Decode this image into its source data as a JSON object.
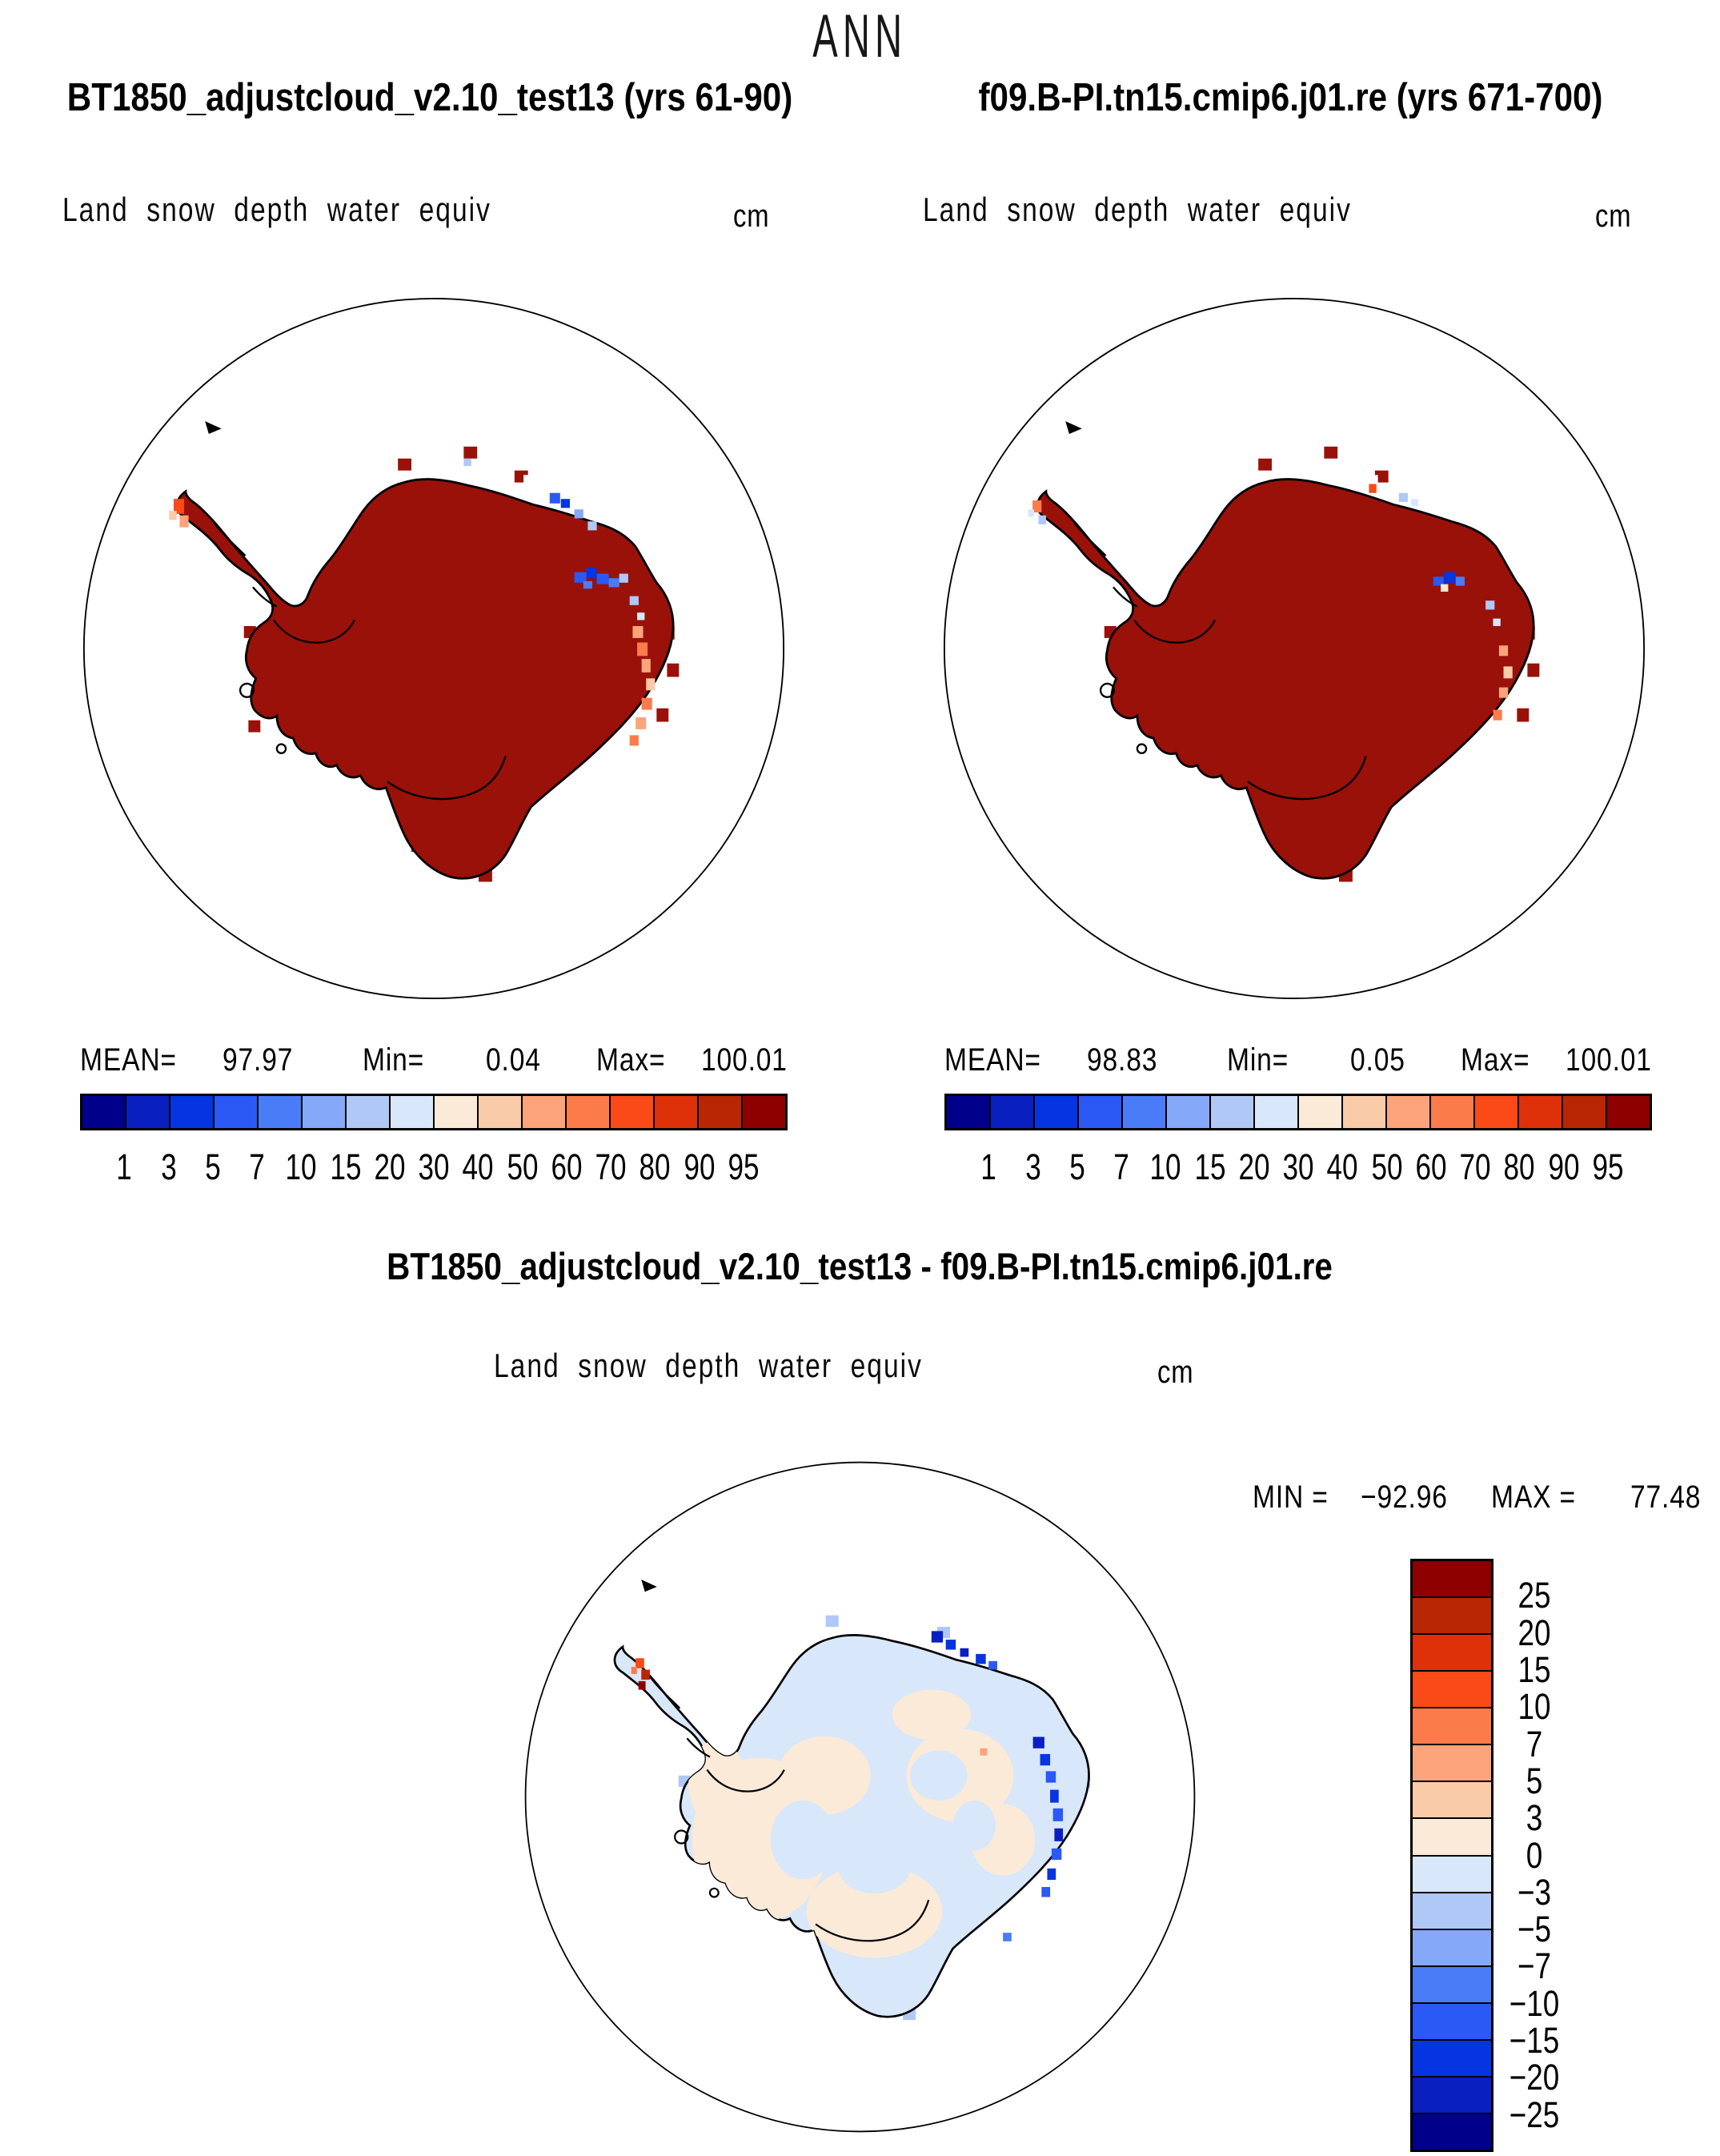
{
  "title": "ANN",
  "panels": [
    {
      "header": "BT1850_adjustcloud_v2.10_test13 (yrs 61-90)",
      "subtitle": "Land snow depth water equiv",
      "units": "cm",
      "stats": {
        "mean_label": "MEAN=",
        "mean": "97.97",
        "min_label": "Min=",
        "min": "0.04",
        "max_label": "Max=",
        "max": "100.01"
      }
    },
    {
      "header": "f09.B-PI.tn15.cmip6.j01.re (yrs 671-700)",
      "subtitle": "Land snow depth water equiv",
      "units": "cm",
      "stats": {
        "mean_label": "MEAN=",
        "mean": "98.83",
        "min_label": "Min=",
        "min": "0.05",
        "max_label": "Max=",
        "max": "100.01"
      }
    }
  ],
  "diff": {
    "header": "BT1850_adjustcloud_v2.10_test13 - f09.B-PI.tn15.cmip6.j01.re",
    "subtitle": "Land snow depth water equiv",
    "units": "cm",
    "min_label": "MIN =",
    "min": "−92.96",
    "max_label": "MAX =",
    "max": "77.48"
  },
  "colorbar": {
    "ticks": [
      "1",
      "3",
      "5",
      "7",
      "10",
      "15",
      "20",
      "30",
      "40",
      "50",
      "60",
      "70",
      "80",
      "90",
      "95"
    ],
    "colors": [
      "#00008B",
      "#0A1FC0",
      "#0535E2",
      "#2B59F5",
      "#4A7CF8",
      "#86A8F8",
      "#AFC8F6",
      "#D8E7FA",
      "#FBEAD7",
      "#F9CBA9",
      "#FBA47C",
      "#FB7B4B",
      "#F94A18",
      "#DE3009",
      "#B92604",
      "#8E0000"
    ]
  },
  "diff_colorbar": {
    "ticks": [
      "25",
      "20",
      "15",
      "10",
      "7",
      "5",
      "3",
      "0",
      "−3",
      "−5",
      "−7",
      "−10",
      "−15",
      "−20",
      "−25"
    ],
    "colors": [
      "#8E0000",
      "#B92604",
      "#DE3009",
      "#F94A18",
      "#FB7B4B",
      "#FBA47C",
      "#F9CBA9",
      "#FBEAD7",
      "#D8E7FA",
      "#AFC8F6",
      "#86A8F8",
      "#4A7CF8",
      "#2B59F5",
      "#0535E2",
      "#0A1FC0",
      "#00008B"
    ]
  },
  "map_colors": {
    "land_fill": "#9A1109",
    "diff_land_fill": "#D8E7FA",
    "diff_land_accent": "#FBEAD7",
    "coastline": "#000000"
  },
  "chart_data": {
    "type": "heatmap",
    "title": "ANN",
    "variable": "Land snow depth water equiv",
    "units": "cm",
    "projection": "south polar stereographic (Antarctica)",
    "panels": [
      {
        "name": "BT1850_adjustcloud_v2.10_test13",
        "years": "61-90",
        "mean": 97.97,
        "min": 0.04,
        "max": 100.01,
        "contour_levels": [
          1,
          3,
          5,
          7,
          10,
          15,
          20,
          30,
          40,
          50,
          60,
          70,
          80,
          90,
          95
        ],
        "legend_position": "below"
      },
      {
        "name": "f09.B-PI.tn15.cmip6.j01.re",
        "years": "671-700",
        "mean": 98.83,
        "min": 0.05,
        "max": 100.01,
        "contour_levels": [
          1,
          3,
          5,
          7,
          10,
          15,
          20,
          30,
          40,
          50,
          60,
          70,
          80,
          90,
          95
        ],
        "legend_position": "below"
      },
      {
        "name": "difference",
        "expression": "BT1850_adjustcloud_v2.10_test13 - f09.B-PI.tn15.cmip6.j01.re",
        "min": -92.96,
        "max": 77.48,
        "contour_levels": [
          -25,
          -20,
          -15,
          -10,
          -7,
          -5,
          -3,
          0,
          3,
          5,
          7,
          10,
          15,
          20,
          25
        ],
        "legend_position": "right"
      }
    ]
  }
}
